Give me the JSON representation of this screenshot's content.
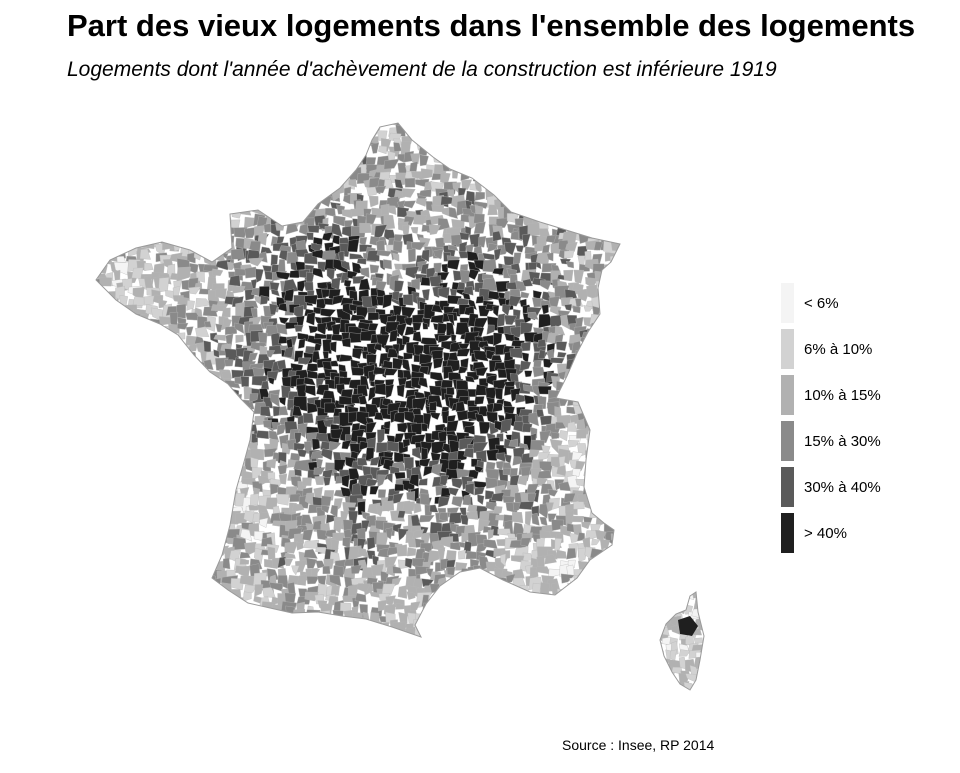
{
  "title": "Part des vieux logements dans l'ensemble des logements",
  "subtitle": "Logements dont l'année d'achèvement de la construction est inférieure 1919",
  "legend": [
    {
      "label": "< 6%",
      "color": "#f4f4f4"
    },
    {
      "label": "6% à 10%",
      "color": "#d2d2d2"
    },
    {
      "label": "10% à 15%",
      "color": "#b1b1b1"
    },
    {
      "label": "15% à 30%",
      "color": "#8a8a8a"
    },
    {
      "label": "30% à 40%",
      "color": "#5a5a5a"
    },
    {
      "label": "> 40%",
      "color": "#1f1f1f"
    }
  ],
  "source": "Source : Insee, RP 2014"
}
